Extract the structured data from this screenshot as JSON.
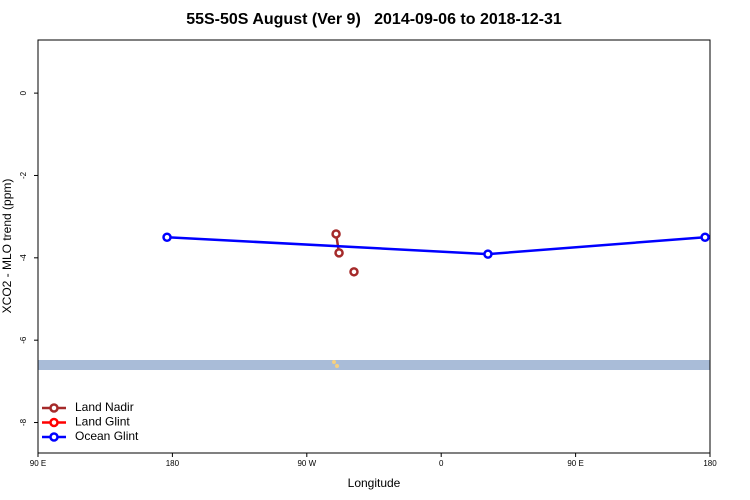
{
  "chart_data": {
    "type": "scatter",
    "title": "55S-50S August (Ver 9)   2014-09-06 to 2018-12-31",
    "x_label": "Longitude",
    "y_label": "XCO2 - MLO trend (ppm)",
    "xlim": [
      90,
      540
    ],
    "xticks": [
      {
        "value": 90,
        "label": "90 E"
      },
      180,
      {
        "value": 270,
        "label": "90 W"
      },
      {
        "value": 360,
        "label": "0"
      },
      {
        "value": 450,
        "label": "90 E"
      },
      {
        "value": 540,
        "label": "180"
      }
    ],
    "ylim": [
      -8.74,
      1.29
    ],
    "yticks": [
      0,
      -2,
      -4,
      -6,
      -8
    ],
    "legend": "bottom-left",
    "series": [
      {
        "name": "Land Nadir",
        "color": "#a52a2a",
        "x": [
          289.6,
          291.6,
          null,
          301.6
        ],
        "values": [
          -3.42,
          -3.88,
          null,
          -4.34
        ]
      },
      {
        "name": "Land Glint",
        "color": "#ff0000",
        "x": [],
        "values": []
      },
      {
        "name": "Ocean Glint",
        "color": "#0000ff",
        "x": [
          176.4,
          391.3,
          536.7
        ],
        "values": [
          -3.5,
          -3.91,
          -3.5
        ]
      }
    ]
  }
}
